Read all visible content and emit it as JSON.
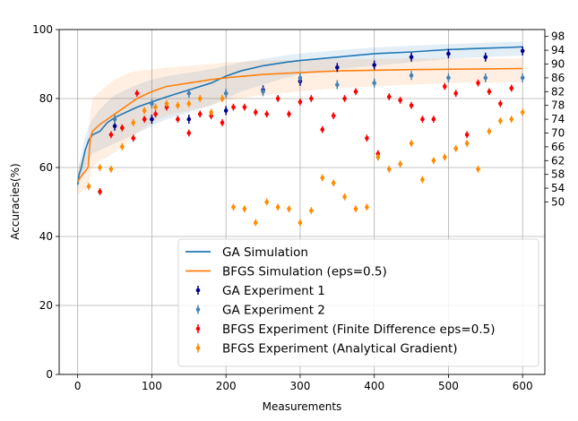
{
  "chart_data": {
    "type": "scatter",
    "xlabel": "Measurements",
    "ylabel": "Accuracies(%)",
    "xlim": [
      -25,
      630
    ],
    "ylim": [
      0,
      100
    ],
    "grid": true,
    "legend_position": "lower-right",
    "x_ticks": [
      0,
      100,
      200,
      300,
      400,
      500,
      600
    ],
    "x_tick_labels": [
      "0",
      "100",
      "200",
      "300",
      "400",
      "500",
      "600"
    ],
    "y_ticks": [
      0,
      20,
      40,
      60,
      80,
      100
    ],
    "y_tick_labels": [
      "0",
      "20",
      "40",
      "60",
      "80",
      "100"
    ],
    "right_axis": {
      "ticks": [
        50,
        54,
        58,
        62,
        66,
        70,
        74,
        78,
        82,
        86,
        90,
        94,
        98
      ],
      "tick_labels": [
        "50",
        "54",
        "58",
        "62",
        "66",
        "70",
        "74",
        "78",
        "82",
        "86",
        "90",
        "94",
        "98"
      ]
    },
    "series": [
      {
        "name": "GA Simulation",
        "kind": "line",
        "color": "#1f77b4",
        "x": [
          0,
          2,
          5,
          10,
          15,
          20,
          30,
          40,
          50,
          60,
          70,
          80,
          100,
          120,
          150,
          180,
          200,
          220,
          250,
          280,
          300,
          350,
          400,
          450,
          500,
          550,
          580,
          600
        ],
        "y": [
          55,
          58,
          60,
          65,
          68,
          69.5,
          70.5,
          73,
          74.5,
          75.5,
          76.5,
          77.5,
          79,
          80.5,
          82.5,
          84.5,
          86.5,
          88,
          89.5,
          90.5,
          91,
          92,
          93,
          93.5,
          94.2,
          94.6,
          94.8,
          95
        ],
        "band_upper": [
          58,
          61,
          64,
          69,
          72,
          74,
          77,
          79,
          81,
          82,
          83,
          84,
          85.5,
          86.5,
          87.5,
          88.5,
          89.5,
          90.5,
          91.5,
          92.5,
          93,
          94,
          94.8,
          95.3,
          95.8,
          96.2,
          96.4,
          96.5
        ],
        "band_lower": [
          52,
          55,
          57,
          60,
          62,
          64,
          65,
          66,
          67,
          68,
          69,
          70,
          72,
          74,
          76,
          78,
          80,
          82,
          84,
          86,
          87,
          88.5,
          89.5,
          90.5,
          91.5,
          92,
          92.3,
          92.5
        ]
      },
      {
        "name": "BFGS Simulation (eps=0.5)",
        "kind": "line",
        "color": "#ff7f0e",
        "x": [
          0,
          5,
          14,
          17,
          20,
          30,
          40,
          50,
          60,
          70,
          80,
          100,
          120,
          150,
          180,
          200,
          250,
          300,
          350,
          400,
          450,
          500,
          550,
          600
        ],
        "y": [
          56,
          57.5,
          60,
          68.5,
          70.5,
          72.5,
          74,
          75.5,
          77,
          78.5,
          80,
          82,
          83.5,
          84.5,
          85.5,
          86,
          87,
          87.5,
          88,
          88.2,
          88.4,
          88.5,
          88.6,
          88.7
        ],
        "band_upper": [
          60,
          62,
          66,
          76,
          80,
          82,
          84,
          85.5,
          86.5,
          87.5,
          88,
          88.5,
          89,
          89.5,
          90,
          90.5,
          91,
          91.2,
          91.4,
          91.5,
          91.6,
          91.6,
          91.6,
          91.6
        ],
        "band_lower": [
          52,
          53,
          54,
          58,
          60,
          62,
          63,
          64.5,
          66,
          68,
          70,
          73,
          75,
          76.5,
          78,
          79.5,
          81,
          82,
          83,
          83.5,
          84,
          84.5,
          84.6,
          84.7
        ]
      },
      {
        "name": "GA Experiment 1",
        "kind": "errorbar",
        "color": "#00008b",
        "x": [
          50,
          100,
          150,
          200,
          250,
          300,
          350,
          400,
          450,
          500,
          550,
          600
        ],
        "y": [
          72,
          74,
          74,
          76.5,
          82.5,
          85,
          89,
          89.7,
          92,
          93,
          92,
          93.8
        ],
        "err": [
          1.3,
          1.3,
          1.3,
          1.3,
          1.3,
          1.3,
          1.3,
          1.3,
          1.3,
          1.3,
          1.3,
          1.3
        ]
      },
      {
        "name": "GA Experiment 2",
        "kind": "errorbar",
        "color": "#4682b4",
        "x": [
          50,
          100,
          150,
          200,
          250,
          300,
          350,
          400,
          450,
          500,
          550,
          600
        ],
        "y": [
          74,
          78.5,
          81.5,
          81.5,
          82,
          86,
          84,
          84.5,
          86.7,
          86,
          86,
          86
        ],
        "err": [
          1.3,
          1.3,
          1.3,
          1.3,
          1.3,
          1.3,
          1.3,
          1.3,
          1.3,
          1.3,
          1.3,
          1.3
        ]
      },
      {
        "name": "BFGS Experiment (Finite Difference eps=0.5)",
        "kind": "errorbar",
        "color": "#ff0000",
        "x": [
          30,
          45,
          60,
          75,
          80,
          90,
          105,
          120,
          135,
          150,
          165,
          180,
          195,
          210,
          225,
          240,
          255,
          270,
          285,
          300,
          315,
          330,
          345,
          360,
          375,
          390,
          405,
          420,
          435,
          450,
          465,
          480,
          495,
          510,
          525,
          540,
          555,
          570,
          585
        ],
        "y": [
          53,
          69.5,
          71.5,
          68.5,
          81.5,
          74,
          75.5,
          77.5,
          74,
          70,
          75.5,
          75,
          73,
          77.5,
          77.5,
          76,
          75.5,
          80,
          75.5,
          79,
          80,
          71,
          75,
          80,
          82,
          68.5,
          64,
          80.5,
          79.5,
          78,
          74,
          74,
          83.5,
          81.5,
          69.5,
          84.5,
          82,
          78.5,
          83
        ],
        "err": [
          1.0,
          1.0,
          1.0,
          1.0,
          1.0,
          1.0,
          1.0,
          1.0,
          1.0,
          1.0,
          1.0,
          1.0,
          1.0,
          1.0,
          1.0,
          1.0,
          1.0,
          1.0,
          1.0,
          1.0,
          1.0,
          1.0,
          1.0,
          1.0,
          1.0,
          1.0,
          1.0,
          1.0,
          1.0,
          1.0,
          1.0,
          1.0,
          1.0,
          1.0,
          1.0,
          1.0,
          1.0,
          1.0,
          1.0
        ]
      },
      {
        "name": "BFGS Experiment (Analytical Gradient)",
        "kind": "errorbar",
        "color": "#ff8c00",
        "x": [
          15,
          30,
          45,
          60,
          75,
          90,
          105,
          120,
          135,
          150,
          165,
          180,
          195,
          210,
          225,
          240,
          255,
          270,
          285,
          300,
          315,
          330,
          345,
          360,
          375,
          390,
          405,
          420,
          435,
          450,
          465,
          480,
          495,
          510,
          525,
          540,
          555,
          570,
          585,
          600
        ],
        "y": [
          54.5,
          60,
          59.5,
          66,
          73,
          76.5,
          77.5,
          78.5,
          78,
          78.5,
          80,
          76,
          80,
          48.5,
          48,
          44,
          50,
          48.5,
          48,
          44,
          47.5,
          57,
          55.5,
          51.5,
          48,
          48.5,
          63,
          59.5,
          61,
          67,
          56.5,
          62,
          63,
          65.5,
          67,
          59.5,
          70.5,
          73.5,
          74,
          76
        ],
        "err": [
          1.0,
          1.0,
          1.0,
          1.0,
          1.0,
          1.0,
          1.0,
          1.0,
          1.0,
          1.0,
          1.0,
          1.0,
          1.0,
          1.0,
          1.0,
          1.0,
          1.0,
          1.0,
          1.0,
          1.0,
          1.0,
          1.0,
          1.0,
          1.0,
          1.0,
          1.0,
          1.0,
          1.0,
          1.0,
          1.0,
          1.0,
          1.0,
          1.0,
          1.0,
          1.0,
          1.0,
          1.0,
          1.0,
          1.0,
          1.0
        ]
      }
    ]
  }
}
